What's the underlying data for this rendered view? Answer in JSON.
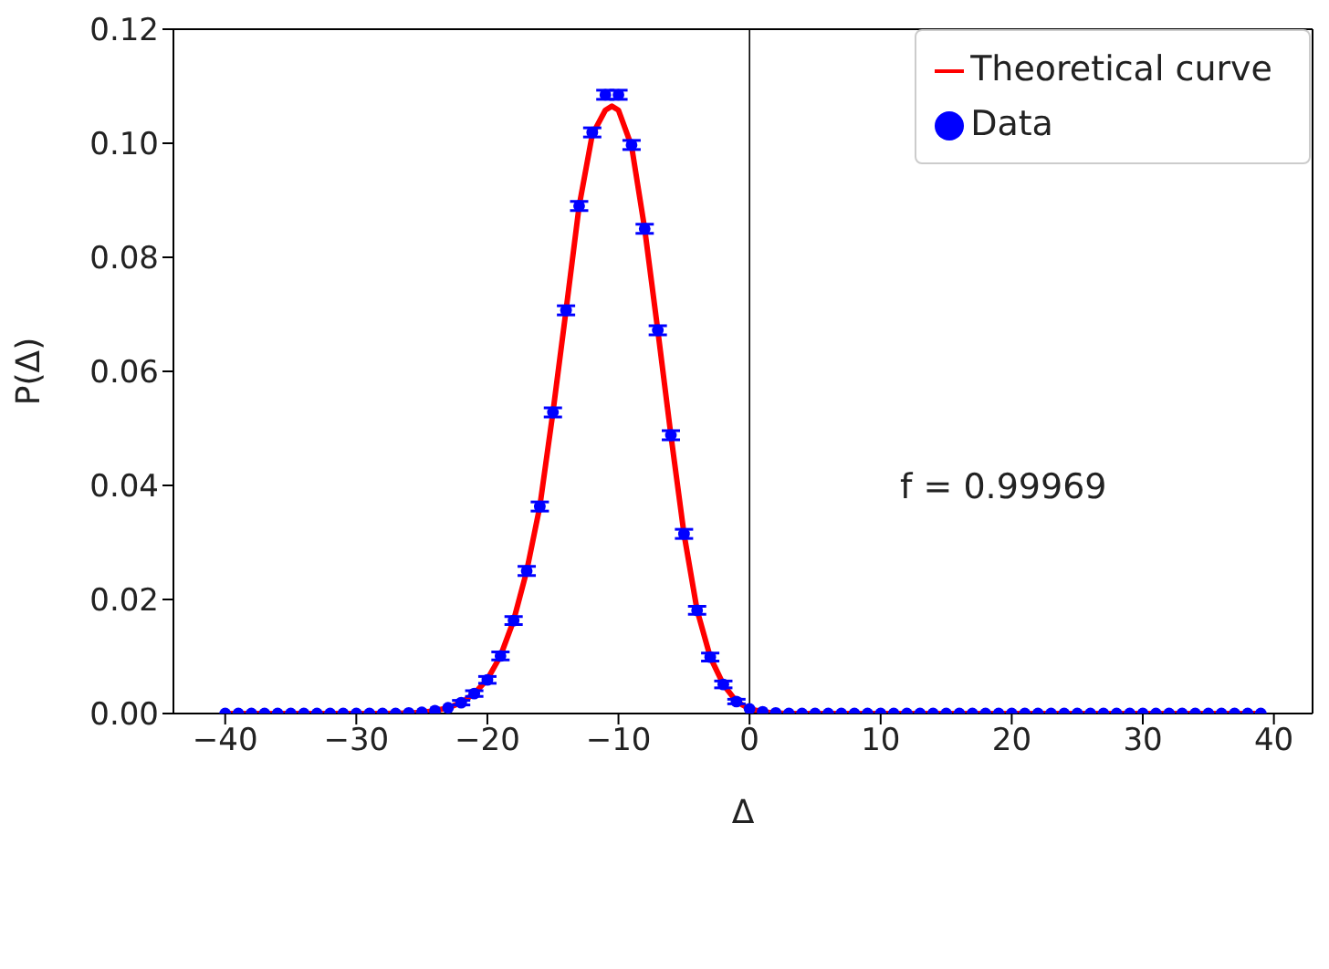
{
  "chart_data": {
    "type": "scatter",
    "xlabel": "Δ",
    "ylabel": "P(Δ)",
    "x": [
      -40,
      -39,
      -38,
      -37,
      -36,
      -35,
      -34,
      -33,
      -32,
      -31,
      -30,
      -29,
      -28,
      -27,
      -26,
      -25,
      -24,
      -23,
      -22,
      -21,
      -20,
      -19,
      -18,
      -17,
      -16,
      -15,
      -14,
      -13,
      -12,
      -11,
      -10,
      -9,
      -8,
      -7,
      -6,
      -5,
      -4,
      -3,
      -2,
      -1,
      0,
      1,
      2,
      3,
      4,
      5,
      6,
      7,
      8,
      9,
      10,
      11,
      12,
      13,
      14,
      15,
      16,
      17,
      18,
      19,
      20,
      21,
      22,
      23,
      24,
      25,
      26,
      27,
      28,
      29,
      30,
      31,
      32,
      33,
      34,
      35,
      36,
      37,
      38,
      39
    ],
    "series": [
      {
        "name": "Theoretical curve",
        "type": "line",
        "color": "#ff0000",
        "marker": "none",
        "line_style": "solid",
        "x": [
          -40,
          -30,
          -28,
          -26,
          -25,
          -24,
          -23,
          -22,
          -21,
          -20,
          -19,
          -18,
          -17,
          -16,
          -15,
          -14,
          -13,
          -12,
          -11,
          -10.5,
          -10,
          -9,
          -8,
          -7,
          -6,
          -5,
          -4,
          -3,
          -2,
          -1,
          0,
          1,
          2,
          3,
          5,
          10,
          20,
          30,
          39
        ],
        "values": [
          0,
          0,
          0,
          0.0001,
          0.0002,
          0.0005,
          0.001,
          0.0019,
          0.0035,
          0.006,
          0.0101,
          0.0163,
          0.025,
          0.0363,
          0.0528,
          0.0707,
          0.089,
          0.1015,
          0.1058,
          0.1065,
          0.1058,
          0.0995,
          0.085,
          0.0672,
          0.0488,
          0.0315,
          0.0181,
          0.0099,
          0.0051,
          0.0021,
          0.0008,
          0.0003,
          0.0001,
          0,
          0,
          0,
          0,
          0,
          0
        ]
      },
      {
        "name": "Data",
        "color": "#0000ff",
        "marker": "circle",
        "values": [
          0,
          0,
          0,
          0,
          0,
          0,
          0,
          0,
          0,
          0,
          0,
          0,
          0,
          0,
          0.0001,
          0.0002,
          0.0005,
          0.001,
          0.0019,
          0.0035,
          0.0059,
          0.0101,
          0.0163,
          0.025,
          0.0363,
          0.0528,
          0.0707,
          0.089,
          0.1019,
          0.1085,
          0.1085,
          0.0997,
          0.085,
          0.0672,
          0.0488,
          0.0315,
          0.0181,
          0.0099,
          0.0051,
          0.0021,
          0.0008,
          0.0003,
          0.0001,
          0,
          0,
          0,
          0,
          0,
          0,
          0,
          0,
          0,
          0,
          0,
          0,
          0,
          0,
          0,
          0,
          0,
          0,
          0,
          0,
          0,
          0,
          0,
          0,
          0,
          0,
          0,
          0,
          0,
          0,
          0,
          0,
          0,
          0,
          0,
          0,
          0
        ],
        "errors": [
          null,
          null,
          null,
          null,
          null,
          null,
          null,
          null,
          null,
          null,
          null,
          null,
          null,
          null,
          null,
          null,
          null,
          null,
          0.0004,
          0.0005,
          0.0006,
          0.0007,
          0.0007,
          0.0008,
          0.0008,
          0.0008,
          0.0008,
          0.0008,
          0.0008,
          0.0008,
          0.0008,
          0.0008,
          0.0008,
          0.0008,
          0.0008,
          0.0008,
          0.0007,
          0.0007,
          0.0006,
          0.0004,
          null,
          null,
          null,
          null,
          null,
          null,
          null,
          null,
          null,
          null,
          null,
          null,
          null,
          null,
          null,
          null,
          null,
          null,
          null,
          null,
          null,
          null,
          null,
          null,
          null,
          null,
          null,
          null,
          null,
          null,
          null,
          null,
          null,
          null,
          null,
          null,
          null,
          null,
          null,
          null
        ]
      }
    ],
    "xlim": [
      -43.95,
      42.95
    ],
    "xticks": [
      -40,
      -30,
      -20,
      -10,
      0,
      10,
      20,
      30,
      40
    ],
    "ylim": [
      0,
      0.12
    ],
    "yticks": [
      {
        "value": 0,
        "label": "0.00"
      },
      0.02,
      0.04,
      0.06,
      0.08,
      {
        "value": 0.1,
        "label": "0.10"
      },
      0.12
    ],
    "ref_lines": [
      {
        "axis": "x",
        "value": 0,
        "color": "#000000",
        "line_style": "solid"
      }
    ],
    "annotations": [
      "f = 0.99969"
    ],
    "grid": false,
    "legend": "top right"
  }
}
